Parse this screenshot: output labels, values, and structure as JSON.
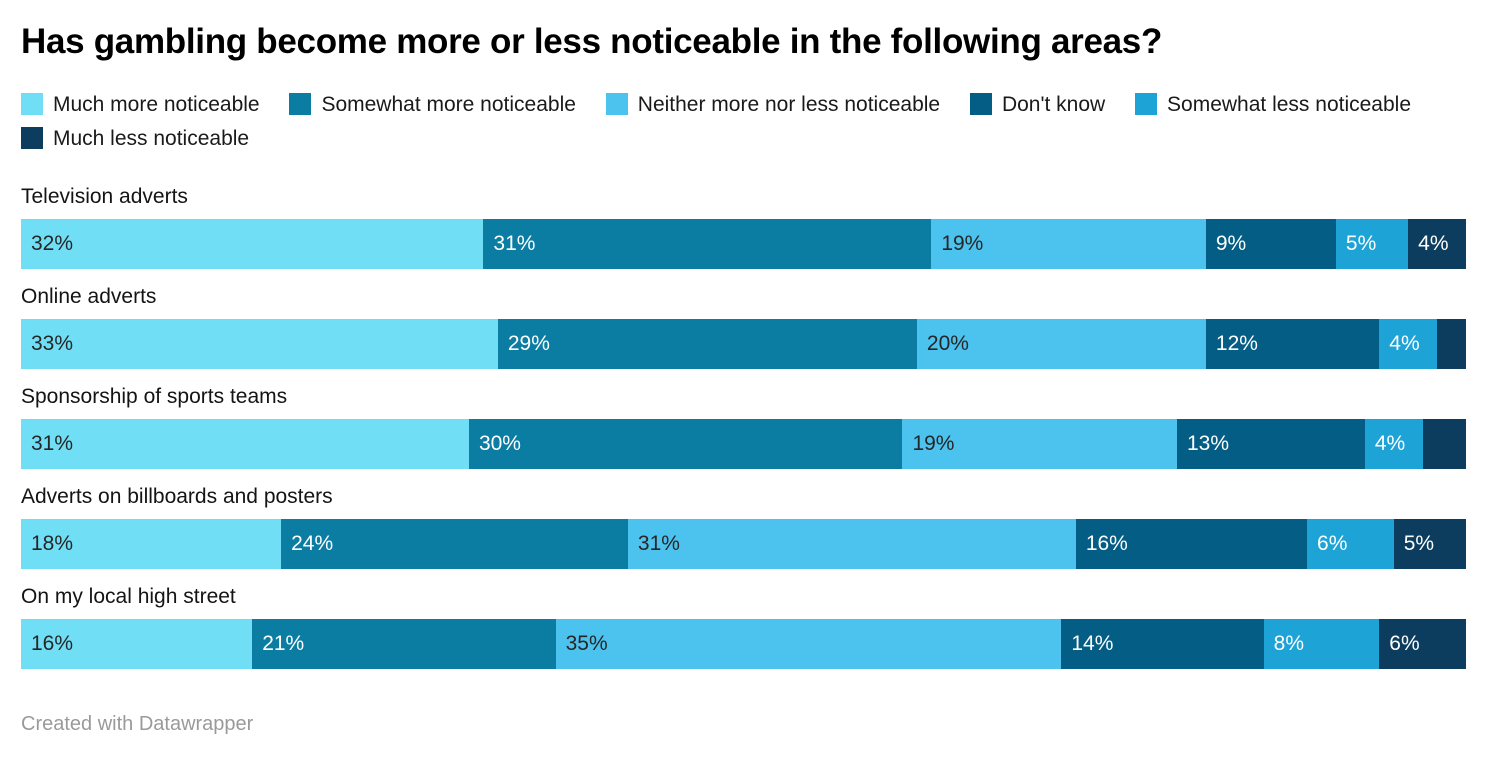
{
  "title": "Has gambling become more or less noticeable in the following areas?",
  "footer": {
    "credit": "Created with Datawrapper"
  },
  "colors": {
    "background": "#ffffff",
    "title_text": "#000000",
    "label_text": "#141414",
    "credit_text": "#9a9a9a",
    "much_more": "#70dff6",
    "somewhat_more": "#0b7da3",
    "neither": "#4cc2ee",
    "dont_know": "#045d84",
    "somewhat_less": "#1ea3d6",
    "much_less": "#0c3d5e"
  },
  "legend": {
    "items": [
      {
        "label": "Much more noticeable",
        "color": "#70dff6"
      },
      {
        "label": "Somewhat more noticeable",
        "color": "#0b7da3"
      },
      {
        "label": "Neither more nor less noticeable",
        "color": "#4cc2ee"
      },
      {
        "label": "Don't know",
        "color": "#045d84"
      },
      {
        "label": "Somewhat less noticeable",
        "color": "#1ea3d6"
      },
      {
        "label": "Much less noticeable",
        "color": "#0c3d5e"
      }
    ]
  },
  "chart_data": {
    "type": "bar",
    "stacked": true,
    "orientation": "horizontal",
    "unit": "%",
    "xlim": [
      0,
      100
    ],
    "min_label_value": 4,
    "title": "Has gambling become more or less noticeable in the following areas?",
    "categories": [
      "Television adverts",
      "Online adverts",
      "Sponsorship of sports teams",
      "Adverts on billboards and posters",
      "On my local high street"
    ],
    "series": [
      {
        "name": "Much more noticeable",
        "color": "#70dff6",
        "label_color": "#262626",
        "values": [
          32,
          33,
          31,
          18,
          16
        ]
      },
      {
        "name": "Somewhat more noticeable",
        "color": "#0b7da3",
        "label_color": "#ffffff",
        "values": [
          31,
          29,
          30,
          24,
          21
        ]
      },
      {
        "name": "Neither more nor less noticeable",
        "color": "#4cc2ee",
        "label_color": "#262626",
        "values": [
          19,
          20,
          19,
          31,
          35
        ]
      },
      {
        "name": "Don't know",
        "color": "#045d84",
        "label_color": "#ffffff",
        "values": [
          9,
          12,
          13,
          16,
          14
        ]
      },
      {
        "name": "Somewhat less noticeable",
        "color": "#1ea3d6",
        "label_color": "#ffffff",
        "values": [
          5,
          4,
          4,
          6,
          8
        ]
      },
      {
        "name": "Much less noticeable",
        "color": "#0c3d5e",
        "label_color": "#ffffff",
        "values": [
          4,
          2,
          3,
          5,
          6
        ]
      }
    ]
  }
}
